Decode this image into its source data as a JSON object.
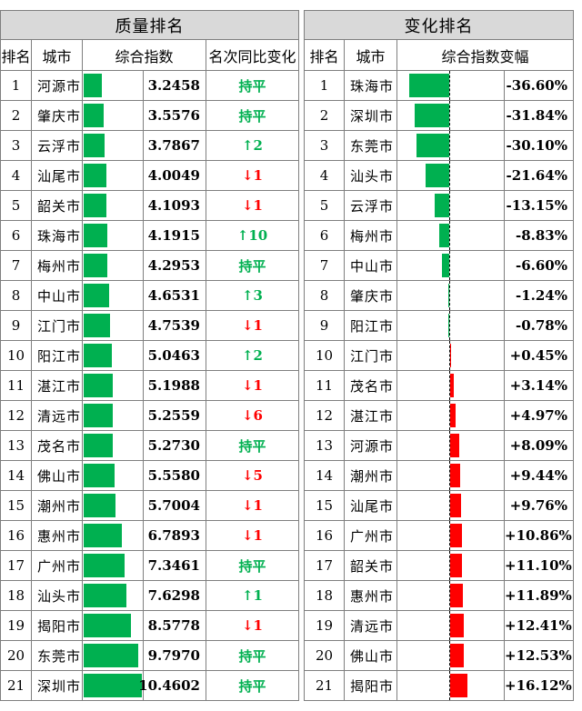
{
  "quality": {
    "title": "质量排名",
    "headers": {
      "rank": "排名",
      "city": "城市",
      "index": "综合指数",
      "change": "名次同比变化"
    },
    "max_index": 10.4602,
    "rows": [
      {
        "rank": "1",
        "city": "河源市",
        "index": "3.2458",
        "value": 3.2458,
        "change": "持平",
        "dir": "same"
      },
      {
        "rank": "2",
        "city": "肇庆市",
        "index": "3.5576",
        "value": 3.5576,
        "change": "持平",
        "dir": "same"
      },
      {
        "rank": "3",
        "city": "云浮市",
        "index": "3.7867",
        "value": 3.7867,
        "change": "↑2",
        "dir": "up"
      },
      {
        "rank": "4",
        "city": "汕尾市",
        "index": "4.0049",
        "value": 4.0049,
        "change": "↓1",
        "dir": "down"
      },
      {
        "rank": "5",
        "city": "韶关市",
        "index": "4.1093",
        "value": 4.1093,
        "change": "↓1",
        "dir": "down"
      },
      {
        "rank": "6",
        "city": "珠海市",
        "index": "4.1915",
        "value": 4.1915,
        "change": "↑10",
        "dir": "up"
      },
      {
        "rank": "7",
        "city": "梅州市",
        "index": "4.2953",
        "value": 4.2953,
        "change": "持平",
        "dir": "same"
      },
      {
        "rank": "8",
        "city": "中山市",
        "index": "4.6531",
        "value": 4.6531,
        "change": "↑3",
        "dir": "up"
      },
      {
        "rank": "9",
        "city": "江门市",
        "index": "4.7539",
        "value": 4.7539,
        "change": "↓1",
        "dir": "down"
      },
      {
        "rank": "10",
        "city": "阳江市",
        "index": "5.0463",
        "value": 5.0463,
        "change": "↑2",
        "dir": "up"
      },
      {
        "rank": "11",
        "city": "湛江市",
        "index": "5.1988",
        "value": 5.1988,
        "change": "↓1",
        "dir": "down"
      },
      {
        "rank": "12",
        "city": "清远市",
        "index": "5.2559",
        "value": 5.2559,
        "change": "↓6",
        "dir": "down"
      },
      {
        "rank": "13",
        "city": "茂名市",
        "index": "5.2730",
        "value": 5.273,
        "change": "持平",
        "dir": "same"
      },
      {
        "rank": "14",
        "city": "佛山市",
        "index": "5.5580",
        "value": 5.558,
        "change": "↓5",
        "dir": "down"
      },
      {
        "rank": "15",
        "city": "潮州市",
        "index": "5.7004",
        "value": 5.7004,
        "change": "↓1",
        "dir": "down"
      },
      {
        "rank": "16",
        "city": "惠州市",
        "index": "6.7893",
        "value": 6.7893,
        "change": "↓1",
        "dir": "down"
      },
      {
        "rank": "17",
        "city": "广州市",
        "index": "7.3461",
        "value": 7.3461,
        "change": "持平",
        "dir": "same"
      },
      {
        "rank": "18",
        "city": "汕头市",
        "index": "7.6298",
        "value": 7.6298,
        "change": "↑1",
        "dir": "up"
      },
      {
        "rank": "19",
        "city": "揭阳市",
        "index": "8.5778",
        "value": 8.5778,
        "change": "↓1",
        "dir": "down"
      },
      {
        "rank": "20",
        "city": "东莞市",
        "index": "9.7970",
        "value": 9.797,
        "change": "持平",
        "dir": "same"
      },
      {
        "rank": "21",
        "city": "深圳市",
        "index": "10.4602",
        "value": 10.4602,
        "change": "持平",
        "dir": "same"
      }
    ]
  },
  "change": {
    "title": "变化排名",
    "headers": {
      "rank": "排名",
      "city": "城市",
      "delta": "综合指数变幅"
    },
    "max_abs_pct": 36.6,
    "rows": [
      {
        "rank": "1",
        "city": "珠海市",
        "delta": "-36.60%",
        "pct": -36.6
      },
      {
        "rank": "2",
        "city": "深圳市",
        "delta": "-31.84%",
        "pct": -31.84
      },
      {
        "rank": "3",
        "city": "东莞市",
        "delta": "-30.10%",
        "pct": -30.1
      },
      {
        "rank": "4",
        "city": "汕头市",
        "delta": "-21.64%",
        "pct": -21.64
      },
      {
        "rank": "5",
        "city": "云浮市",
        "delta": "-13.15%",
        "pct": -13.15
      },
      {
        "rank": "6",
        "city": "梅州市",
        "delta": "-8.83%",
        "pct": -8.83
      },
      {
        "rank": "7",
        "city": "中山市",
        "delta": "-6.60%",
        "pct": -6.6
      },
      {
        "rank": "8",
        "city": "肇庆市",
        "delta": "-1.24%",
        "pct": -1.24
      },
      {
        "rank": "9",
        "city": "阳江市",
        "delta": "-0.78%",
        "pct": -0.78
      },
      {
        "rank": "10",
        "city": "江门市",
        "delta": "+0.45%",
        "pct": 0.45
      },
      {
        "rank": "11",
        "city": "茂名市",
        "delta": "+3.14%",
        "pct": 3.14
      },
      {
        "rank": "12",
        "city": "湛江市",
        "delta": "+4.97%",
        "pct": 4.97
      },
      {
        "rank": "13",
        "city": "河源市",
        "delta": "+8.09%",
        "pct": 8.09
      },
      {
        "rank": "14",
        "city": "潮州市",
        "delta": "+9.44%",
        "pct": 9.44
      },
      {
        "rank": "15",
        "city": "汕尾市",
        "delta": "+9.76%",
        "pct": 9.76
      },
      {
        "rank": "16",
        "city": "广州市",
        "delta": "+10.86%",
        "pct": 10.86
      },
      {
        "rank": "17",
        "city": "韶关市",
        "delta": "+11.10%",
        "pct": 11.1
      },
      {
        "rank": "18",
        "city": "惠州市",
        "delta": "+11.89%",
        "pct": 11.89
      },
      {
        "rank": "19",
        "city": "清远市",
        "delta": "+12.41%",
        "pct": 12.41
      },
      {
        "rank": "20",
        "city": "佛山市",
        "delta": "+12.53%",
        "pct": 12.53
      },
      {
        "rank": "21",
        "city": "揭阳市",
        "delta": "+16.12%",
        "pct": 16.12
      }
    ]
  },
  "colors": {
    "improve": "#00b050",
    "worsen": "#ff0000",
    "header_bg": "#d9d9d9"
  }
}
